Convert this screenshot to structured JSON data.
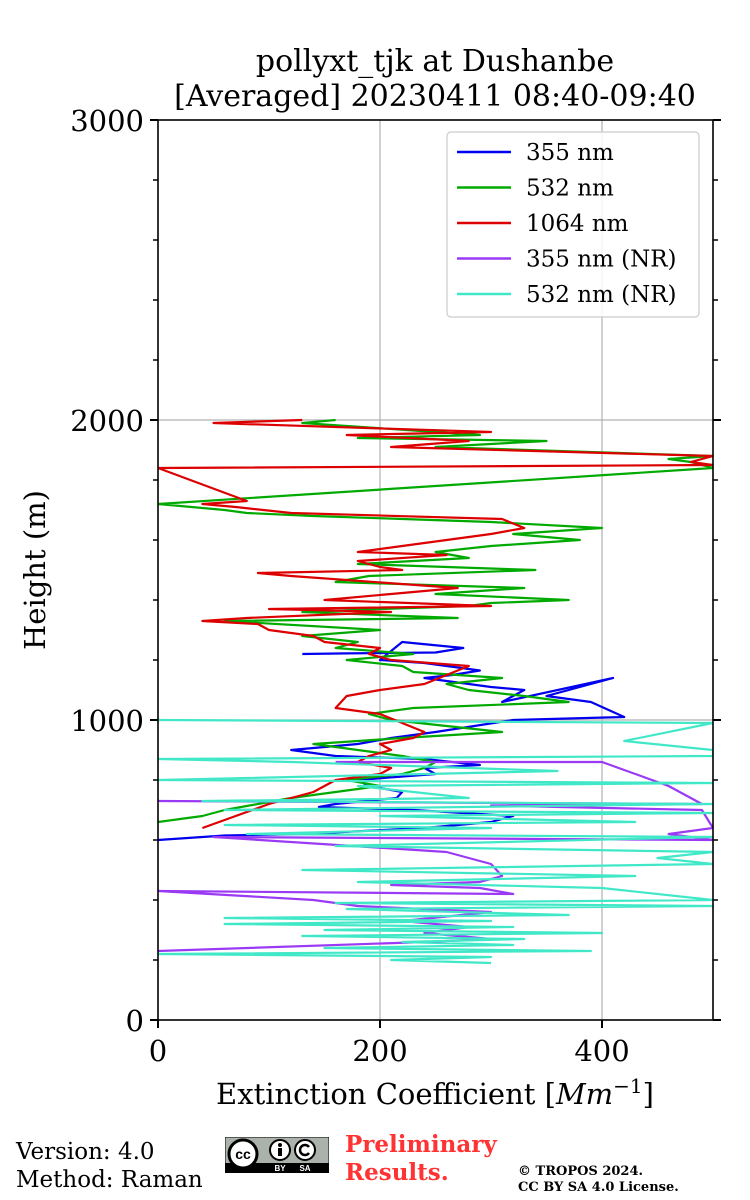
{
  "chart_data": {
    "type": "line",
    "title": [
      "pollyxt_tjk at Dushanbe",
      "[Averaged] 20230411 08:40-09:40"
    ],
    "xlabel": "Extinction Coefficient [Mm⁻¹]",
    "ylabel": "Height (m)",
    "xlim": [
      0,
      500
    ],
    "ylim": [
      0,
      3000
    ],
    "xticks": [
      0,
      200,
      400
    ],
    "yticks": [
      0,
      1000,
      2000,
      3000
    ],
    "grid": true,
    "legend_position": "top-right",
    "series": [
      {
        "name": "355 nm",
        "color": "#0000ee",
        "x": [
          130,
          170,
          250,
          275,
          220,
          200,
          240,
          290,
          265,
          240,
          300,
          330,
          310,
          410,
          380,
          350,
          390,
          420,
          320,
          250,
          210,
          180,
          120,
          160,
          240,
          290,
          240,
          250,
          180,
          190,
          220,
          215,
          160,
          145,
          230,
          320,
          300,
          240,
          130,
          60,
          40,
          0
        ],
        "y": [
          1220,
          1222,
          1225,
          1240,
          1260,
          1200,
          1190,
          1165,
          1150,
          1140,
          1110,
          1100,
          1060,
          1140,
          1110,
          1080,
          1060,
          1010,
          1000,
          960,
          940,
          920,
          900,
          880,
          870,
          850,
          840,
          820,
          800,
          780,
          760,
          740,
          720,
          710,
          700,
          680,
          660,
          640,
          620,
          615,
          610,
          600
        ]
      },
      {
        "name": "532 nm",
        "color": "#00aa00",
        "x": [
          160,
          130,
          290,
          180,
          350,
          250,
          500,
          460,
          480,
          500,
          0,
          60,
          80,
          140,
          300,
          400,
          320,
          380,
          300,
          250,
          280,
          180,
          340,
          190,
          160,
          330,
          250,
          370,
          300,
          280,
          200,
          130,
          270,
          60,
          200,
          130,
          180,
          160,
          230,
          170,
          220,
          230,
          310,
          260,
          280,
          330,
          370,
          230,
          190,
          210,
          260,
          310,
          220,
          140,
          180,
          220,
          250,
          240,
          220,
          170,
          200,
          160,
          120,
          90,
          60,
          40,
          0
        ],
        "y": [
          2000,
          1990,
          1950,
          1940,
          1930,
          1910,
          1880,
          1870,
          1860,
          1840,
          1720,
          1700,
          1690,
          1680,
          1660,
          1640,
          1620,
          1600,
          1580,
          1560,
          1540,
          1520,
          1500,
          1480,
          1460,
          1440,
          1420,
          1400,
          1390,
          1380,
          1370,
          1360,
          1340,
          1330,
          1300,
          1280,
          1260,
          1240,
          1220,
          1200,
          1180,
          1160,
          1140,
          1120,
          1100,
          1080,
          1060,
          1040,
          1020,
          1000,
          980,
          960,
          940,
          920,
          900,
          880,
          860,
          840,
          820,
          800,
          780,
          760,
          740,
          720,
          700,
          680,
          660
        ]
      },
      {
        "name": "1064 nm",
        "color": "#dd0000",
        "x": [
          130,
          50,
          300,
          170,
          280,
          210,
          500,
          480,
          500,
          0,
          80,
          40,
          70,
          120,
          310,
          330,
          300,
          260,
          220,
          180,
          260,
          180,
          200,
          220,
          90,
          120,
          270,
          210,
          150,
          300,
          100,
          210,
          80,
          40,
          90,
          100,
          140,
          150,
          200,
          190,
          210,
          280,
          260,
          240,
          200,
          170,
          160,
          200,
          240,
          230,
          200,
          210,
          190,
          180,
          210,
          200,
          160,
          140,
          100,
          70,
          40
        ],
        "y": [
          2000,
          1990,
          1960,
          1950,
          1930,
          1910,
          1880,
          1860,
          1850,
          1840,
          1730,
          1720,
          1710,
          1690,
          1670,
          1640,
          1620,
          1600,
          1580,
          1560,
          1550,
          1530,
          1510,
          1500,
          1490,
          1480,
          1440,
          1420,
          1400,
          1380,
          1370,
          1360,
          1340,
          1330,
          1320,
          1300,
          1280,
          1260,
          1240,
          1220,
          1200,
          1180,
          1150,
          1120,
          1100,
          1080,
          1040,
          1020,
          960,
          940,
          920,
          900,
          880,
          860,
          840,
          820,
          800,
          760,
          720,
          680,
          640
        ]
      },
      {
        "name": "355 nm (NR)",
        "color": "#9b3af5",
        "x": [
          160,
          400,
          460,
          490,
          0,
          470,
          300,
          490,
          500,
          460,
          500,
          50,
          260,
          300,
          310,
          290,
          210,
          290,
          320,
          0,
          140,
          180,
          300,
          220,
          280,
          240,
          300,
          240,
          0
        ],
        "y": [
          860,
          860,
          780,
          720,
          730,
          720,
          715,
          700,
          640,
          620,
          600,
          610,
          560,
          520,
          480,
          460,
          450,
          440,
          420,
          430,
          400,
          380,
          360,
          330,
          310,
          290,
          270,
          260,
          230
        ]
      },
      {
        "name": "532 nm (NR)",
        "color": "#40e8c8",
        "x": [
          0,
          500,
          420,
          500,
          500,
          0,
          120,
          360,
          0,
          500,
          180,
          280,
          40,
          500,
          60,
          500,
          200,
          430,
          60,
          300,
          80,
          500,
          160,
          500,
          450,
          500,
          130,
          430,
          180,
          400,
          500,
          160,
          500,
          170,
          370,
          60,
          300,
          60,
          320,
          150,
          400,
          130,
          330,
          220,
          320,
          150,
          390,
          0,
          300,
          210,
          300
        ],
        "y": [
          1000,
          990,
          930,
          900,
          880,
          870,
          860,
          830,
          800,
          790,
          780,
          740,
          730,
          720,
          700,
          690,
          680,
          660,
          650,
          640,
          620,
          610,
          580,
          560,
          540,
          520,
          500,
          480,
          460,
          440,
          400,
          390,
          380,
          370,
          350,
          340,
          330,
          320,
          310,
          300,
          290,
          280,
          270,
          260,
          250,
          240,
          230,
          220,
          210,
          200,
          190
        ]
      }
    ]
  },
  "footer": {
    "version": "Version: 4.0",
    "method": "Method: Raman",
    "cc_text": "cc",
    "cc_by": "BY",
    "cc_sa": "SA",
    "prelim_line1": "Preliminary",
    "prelim_line2": "Results.",
    "copyright_line1": "© TROPOS 2024.",
    "copyright_line2": "CC BY SA 4.0 License."
  },
  "colors": {
    "grid": "#b0b0b0",
    "preliminary": "#ff3333",
    "cc_badge_bg": "#aab2ab",
    "cc_badge_band": "#000000"
  }
}
